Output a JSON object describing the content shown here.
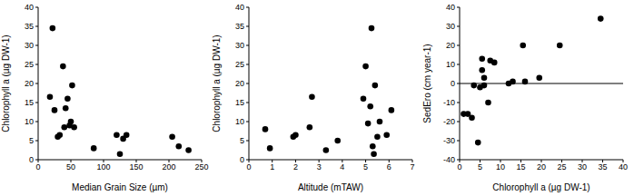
{
  "chart_data": [
    {
      "type": "scatter",
      "x_label": "Median Grain Size (µm)",
      "y_label": "Chlorophyll a (µg DW-1)",
      "x": [
        18,
        22,
        25,
        30,
        33,
        38,
        40,
        42,
        45,
        48,
        50,
        52,
        55,
        85,
        120,
        125,
        130,
        135,
        205,
        215,
        230
      ],
      "values": [
        16.5,
        34.5,
        13,
        6,
        6.5,
        24.5,
        8.5,
        13.5,
        16,
        9,
        10,
        19.5,
        8.5,
        3,
        6.5,
        1.5,
        5.5,
        6.5,
        6,
        3.5,
        2.5
      ],
      "color": "#000000",
      "marker": "circle",
      "xlim": [
        0,
        250
      ],
      "xticks": [
        0,
        50,
        100,
        150,
        200,
        250
      ],
      "ylim": [
        0,
        40
      ],
      "yticks": [
        0,
        5,
        10,
        15,
        20,
        25,
        30,
        35,
        40
      ]
    },
    {
      "type": "scatter",
      "x_label": "Altitude (mTAW)",
      "y_label": "Chlorophyll a (µg DW-1)",
      "x": [
        0.7,
        0.9,
        1.9,
        2.0,
        2.6,
        2.7,
        3.3,
        3.8,
        4.9,
        5.0,
        5.1,
        5.2,
        5.25,
        5.3,
        5.35,
        5.4,
        5.5,
        5.6,
        5.9,
        6.1
      ],
      "values": [
        8,
        3,
        6,
        6.5,
        8.5,
        16.5,
        2.5,
        5,
        16,
        24.5,
        9.5,
        14,
        34.5,
        3.5,
        1.5,
        19.5,
        6,
        10,
        6.5,
        13
      ],
      "color": "#000000",
      "marker": "circle",
      "xlim": [
        0,
        7
      ],
      "xticks": [
        0,
        1,
        2,
        3,
        4,
        5,
        6,
        7
      ],
      "ylim": [
        0,
        40
      ],
      "yticks": [
        0,
        5,
        10,
        15,
        20,
        25,
        30,
        35,
        40
      ]
    },
    {
      "type": "scatter",
      "x_label": "Chlorophyll a (µg DW-1)",
      "y_label": "SedEro (cm year-1)",
      "x": [
        1,
        2,
        3,
        3.5,
        4.5,
        5,
        5.5,
        5.5,
        6,
        6,
        7,
        7.5,
        8.5,
        12,
        13,
        15.5,
        16,
        19.5,
        24.5,
        34.5
      ],
      "values": [
        -16,
        -16,
        -18,
        -1,
        -31,
        -2,
        13,
        7,
        -1,
        3,
        -10,
        12,
        11,
        0,
        1,
        20,
        1,
        3,
        20,
        34
      ],
      "color": "#000000",
      "marker": "circle",
      "xlim": [
        0,
        40
      ],
      "xticks": [
        0,
        5,
        10,
        15,
        20,
        25,
        30,
        35,
        40
      ],
      "ylim": [
        -40,
        40
      ],
      "yticks": [
        -40,
        -30,
        -20,
        -10,
        0,
        10,
        20,
        30,
        40
      ]
    }
  ]
}
